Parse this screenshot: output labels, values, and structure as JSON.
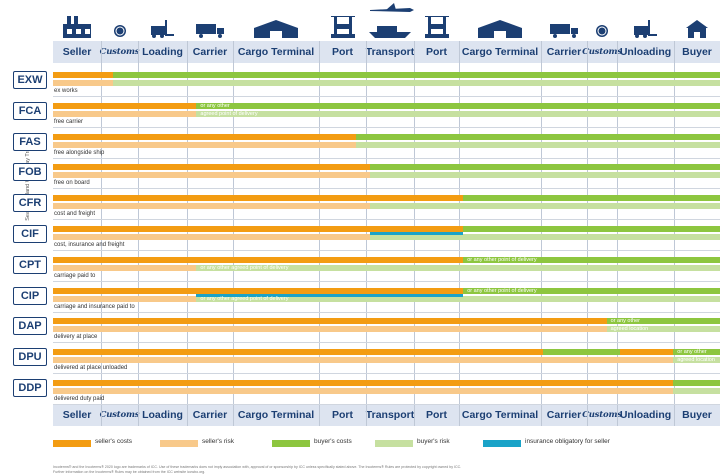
{
  "colors": {
    "seller_costs": "#f39c12",
    "seller_risk": "#f8c98a",
    "buyer_costs": "#8dc63f",
    "buyer_risk": "#c6e0a0",
    "insurance": "#1aa3c8",
    "navy": "#1c3f73"
  },
  "header_columns": [
    {
      "label": "Seller",
      "icon": "factory-icon"
    },
    {
      "label": "Customs",
      "icon": "customs-seal-icon",
      "script": true
    },
    {
      "label": "Loading",
      "icon": "forklift-icon"
    },
    {
      "label": "Carrier",
      "icon": "truck-icon"
    },
    {
      "label": "Cargo Terminal",
      "icon": "warehouse-icon"
    },
    {
      "label": "Port",
      "icon": "port-crane-icon"
    },
    {
      "label": "Transport",
      "icon": "airplane-ship-icon"
    },
    {
      "label": "Port",
      "icon": "port-crane-icon"
    },
    {
      "label": "Cargo Terminal",
      "icon": "warehouse-icon"
    },
    {
      "label": "Carrier",
      "icon": "truck-icon"
    },
    {
      "label": "Customs",
      "icon": "customs-seal-icon",
      "script": true
    },
    {
      "label": "Unloading",
      "icon": "forklift-icon"
    },
    {
      "label": "Buyer",
      "icon": "house-icon"
    }
  ],
  "side_label": "Sea and Inland Waterway Transport",
  "terms": [
    {
      "code": "EXW",
      "desc": "ex works",
      "cost_split": 0.09,
      "risk_split": 0.09,
      "cost_arrow": true
    },
    {
      "code": "FCA",
      "desc": "free carrier",
      "cost_split": 0.215,
      "risk_split": 0.215,
      "note": [
        "or any other",
        "agreed point of delivery"
      ]
    },
    {
      "code": "FAS",
      "desc": "free alongside ship",
      "cost_split": 0.455,
      "risk_split": 0.455
    },
    {
      "code": "FOB",
      "desc": "free on board",
      "cost_split": 0.475,
      "risk_split": 0.475,
      "cost_arrow": true
    },
    {
      "code": "CFR",
      "desc": "cost and freight",
      "cost_split": 0.615,
      "risk_split": 0.475
    },
    {
      "code": "CIF",
      "desc": "cost, insurance and freight",
      "cost_split": 0.615,
      "risk_split": 0.475,
      "insurance": [
        0.475,
        0.615
      ]
    },
    {
      "code": "CPT",
      "desc": "carriage paid to",
      "cost_split": 0.615,
      "risk_split": 0.215,
      "note_cost": "or any other point of delivery",
      "note_risk": "or any other agreed point of delivery"
    },
    {
      "code": "CIP",
      "desc": "carriage and insurance paid to",
      "cost_split": 0.615,
      "risk_split": 0.215,
      "insurance": [
        0.215,
        0.615
      ],
      "note_cost": "or any other point of delivery",
      "note_risk": "or any other agreed point of delivery"
    },
    {
      "code": "DAP",
      "desc": "delivery at place",
      "cost_split": 0.83,
      "risk_split": 0.83,
      "note": [
        "or any other",
        "agreed location"
      ]
    },
    {
      "code": "DPU",
      "desc": "delivered at place unloaded",
      "cost_split": 0.93,
      "risk_split": 0.93,
      "cost_gap": [
        0.735,
        0.85
      ],
      "note": [
        "or any other",
        "agreed location"
      ]
    },
    {
      "code": "DDP",
      "desc": "delivered duty paid",
      "cost_split": 0.93,
      "risk_split": 0.93
    }
  ],
  "legend": [
    {
      "label": "seller's costs",
      "color": "#f39c12"
    },
    {
      "label": "seller's risk",
      "color": "#f8c98a"
    },
    {
      "label": "buyer's costs",
      "color": "#8dc63f"
    },
    {
      "label": "buyer's risk",
      "color": "#c6e0a0"
    },
    {
      "label": "insurance obligatory for seller",
      "color": "#1aa3c8"
    }
  ],
  "footer": [
    "Incoterms® and the Incoterms® 2020 logo are trademarks of ICC. Use of these trademarks does not imply association with, approval of or sponsorship by ICC unless specifically stated above. The Incoterms® Rules are protected by copyright owned by ICC.",
    "Further information on the Incoterms® Rules may be obtained from the ICC website iccwbo.org."
  ]
}
